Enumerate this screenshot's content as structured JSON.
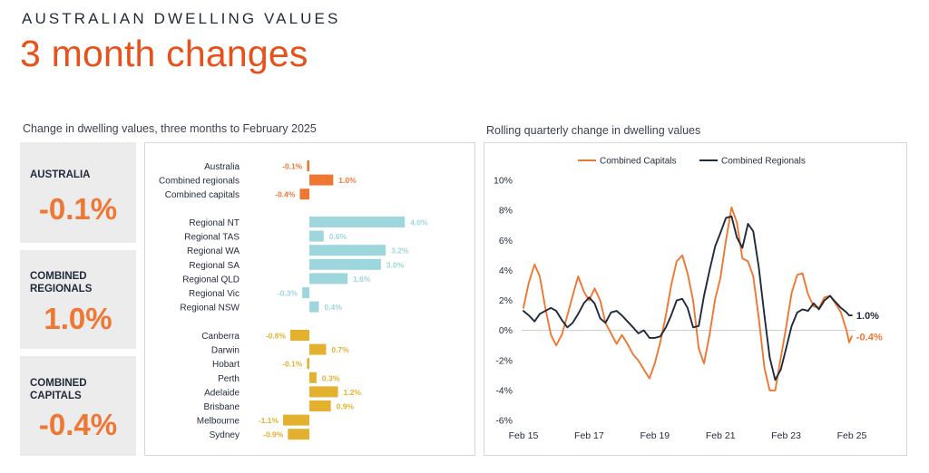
{
  "header": {
    "eyebrow": "AUSTRALIAN DWELLING VALUES",
    "title": "3 month changes"
  },
  "kpis": [
    {
      "label_lines": [
        "AUSTRALIA"
      ],
      "value": "-0.1%"
    },
    {
      "label_lines": [
        "COMBINED",
        "REGIONALS"
      ],
      "value": "1.0%"
    },
    {
      "label_lines": [
        "COMBINED",
        "CAPITALS"
      ],
      "value": "-0.4%"
    }
  ],
  "colors": {
    "orange_accent": "#e8511b",
    "kpi_value": "#ef7734",
    "bar_orange": "#ef7734",
    "bar_teal": "#9ed6dd",
    "bar_gold": "#e3b12e",
    "line_capitals": "#ef7734",
    "line_regionals": "#1f2a3a"
  },
  "chart_data": [
    {
      "type": "bar",
      "orientation": "horizontal",
      "title": "Change in dwelling values, three months to February 2025",
      "unit": "%",
      "groups": [
        {
          "color_key": "bar_orange",
          "categories": [
            "Australia",
            "Combined regionals",
            "Combined capitals"
          ],
          "values": [
            -0.1,
            1.0,
            -0.4
          ],
          "labels": [
            "-0.1%",
            "1.0%",
            "-0.4%"
          ]
        },
        {
          "color_key": "bar_teal",
          "categories": [
            "Regional NT",
            "Regional TAS",
            "Regional WA",
            "Regional SA",
            "Regional QLD",
            "Regional Vic",
            "Regional NSW"
          ],
          "values": [
            4.0,
            0.6,
            3.2,
            3.0,
            1.6,
            -0.3,
            0.4
          ],
          "labels": [
            "4.0%",
            "0.6%",
            "3.2%",
            "3.0%",
            "1.6%",
            "-0.3%",
            "0.4%"
          ]
        },
        {
          "color_key": "bar_gold",
          "categories": [
            "Canberra",
            "Darwin",
            "Hobart",
            "Perth",
            "Adelaide",
            "Brisbane",
            "Melbourne",
            "Sydney"
          ],
          "values": [
            -0.8,
            0.7,
            -0.1,
            0.3,
            1.2,
            0.9,
            -1.1,
            -0.9
          ],
          "labels": [
            "-0.8%",
            "0.7%",
            "-0.1%",
            "0.3%",
            "1.2%",
            "0.9%",
            "-1.1%",
            "-0.9%"
          ]
        }
      ]
    },
    {
      "type": "line",
      "title": "Rolling quarterly change in dwelling values",
      "x_tick_labels": [
        "Feb 15",
        "Feb 17",
        "Feb 19",
        "Feb 21",
        "Feb 23",
        "Feb 25"
      ],
      "x_tick_positions": [
        2015.083,
        2017.083,
        2019.083,
        2021.083,
        2023.083,
        2025.083
      ],
      "xlim": [
        2015.083,
        2025.083
      ],
      "y_tick_labels": [
        "10%",
        "8%",
        "6%",
        "4%",
        "2%",
        "0%",
        "-2%",
        "-4%",
        "-6%"
      ],
      "y_ticks": [
        10,
        8,
        6,
        4,
        2,
        0,
        -2,
        -4,
        -6
      ],
      "ylim": [
        -6,
        10
      ],
      "legend_position": "top-center",
      "series": [
        {
          "name": "Combined Capitals",
          "color_key": "line_capitals",
          "end_label": "-0.4%",
          "points": [
            [
              2015.08,
              1.5
            ],
            [
              2015.25,
              3.2
            ],
            [
              2015.42,
              4.4
            ],
            [
              2015.58,
              3.6
            ],
            [
              2015.75,
              1.5
            ],
            [
              2015.92,
              -0.3
            ],
            [
              2016.08,
              -1.0
            ],
            [
              2016.25,
              -0.3
            ],
            [
              2016.42,
              1.0
            ],
            [
              2016.58,
              2.3
            ],
            [
              2016.75,
              3.6
            ],
            [
              2016.92,
              2.6
            ],
            [
              2017.08,
              2.0
            ],
            [
              2017.25,
              2.8
            ],
            [
              2017.42,
              2.0
            ],
            [
              2017.58,
              0.5
            ],
            [
              2017.75,
              -0.2
            ],
            [
              2017.92,
              -0.9
            ],
            [
              2018.08,
              -0.3
            ],
            [
              2018.25,
              -0.9
            ],
            [
              2018.42,
              -1.6
            ],
            [
              2018.58,
              -2.0
            ],
            [
              2018.75,
              -2.6
            ],
            [
              2018.92,
              -3.2
            ],
            [
              2019.08,
              -2.2
            ],
            [
              2019.25,
              -0.8
            ],
            [
              2019.42,
              1.0
            ],
            [
              2019.58,
              3.0
            ],
            [
              2019.75,
              4.6
            ],
            [
              2019.92,
              5.0
            ],
            [
              2020.08,
              3.8
            ],
            [
              2020.25,
              2.0
            ],
            [
              2020.42,
              -1.2
            ],
            [
              2020.58,
              -2.2
            ],
            [
              2020.75,
              -0.3
            ],
            [
              2020.92,
              2.1
            ],
            [
              2021.08,
              3.5
            ],
            [
              2021.25,
              6.0
            ],
            [
              2021.42,
              8.2
            ],
            [
              2021.58,
              7.2
            ],
            [
              2021.75,
              4.8
            ],
            [
              2021.92,
              4.6
            ],
            [
              2022.08,
              3.6
            ],
            [
              2022.25,
              0.8
            ],
            [
              2022.42,
              -2.5
            ],
            [
              2022.58,
              -4.0
            ],
            [
              2022.75,
              -4.0
            ],
            [
              2022.92,
              -1.8
            ],
            [
              2023.08,
              0.2
            ],
            [
              2023.25,
              2.5
            ],
            [
              2023.42,
              3.7
            ],
            [
              2023.58,
              3.8
            ],
            [
              2023.75,
              2.4
            ],
            [
              2023.92,
              1.6
            ],
            [
              2024.08,
              1.5
            ],
            [
              2024.25,
              2.2
            ],
            [
              2024.42,
              2.3
            ],
            [
              2024.58,
              1.8
            ],
            [
              2024.75,
              1.2
            ],
            [
              2024.92,
              0.0
            ],
            [
              2025.0,
              -0.8
            ],
            [
              2025.08,
              -0.4
            ]
          ]
        },
        {
          "name": "Combined Regionals",
          "color_key": "line_regionals",
          "end_label": "1.0%",
          "points": [
            [
              2015.08,
              1.3
            ],
            [
              2015.25,
              1.0
            ],
            [
              2015.42,
              0.6
            ],
            [
              2015.58,
              1.1
            ],
            [
              2015.75,
              1.3
            ],
            [
              2015.92,
              1.5
            ],
            [
              2016.08,
              1.3
            ],
            [
              2016.25,
              0.7
            ],
            [
              2016.42,
              0.2
            ],
            [
              2016.58,
              0.5
            ],
            [
              2016.75,
              1.1
            ],
            [
              2016.92,
              1.8
            ],
            [
              2017.08,
              2.2
            ],
            [
              2017.25,
              1.8
            ],
            [
              2017.42,
              0.8
            ],
            [
              2017.58,
              0.5
            ],
            [
              2017.75,
              1.2
            ],
            [
              2017.92,
              1.3
            ],
            [
              2018.08,
              1.0
            ],
            [
              2018.25,
              0.6
            ],
            [
              2018.42,
              0.2
            ],
            [
              2018.58,
              -0.2
            ],
            [
              2018.75,
              0.0
            ],
            [
              2018.92,
              -0.5
            ],
            [
              2019.08,
              -0.5
            ],
            [
              2019.25,
              -0.4
            ],
            [
              2019.42,
              0.2
            ],
            [
              2019.58,
              1.0
            ],
            [
              2019.75,
              2.0
            ],
            [
              2019.92,
              2.1
            ],
            [
              2020.08,
              1.5
            ],
            [
              2020.25,
              0.2
            ],
            [
              2020.42,
              0.3
            ],
            [
              2020.58,
              2.3
            ],
            [
              2020.75,
              4.0
            ],
            [
              2020.92,
              5.6
            ],
            [
              2021.08,
              6.5
            ],
            [
              2021.25,
              7.5
            ],
            [
              2021.42,
              7.6
            ],
            [
              2021.58,
              6.2
            ],
            [
              2021.75,
              5.5
            ],
            [
              2021.92,
              7.1
            ],
            [
              2022.08,
              6.6
            ],
            [
              2022.25,
              4.2
            ],
            [
              2022.42,
              1.0
            ],
            [
              2022.58,
              -1.8
            ],
            [
              2022.75,
              -3.3
            ],
            [
              2022.92,
              -2.6
            ],
            [
              2023.08,
              -1.2
            ],
            [
              2023.25,
              0.3
            ],
            [
              2023.42,
              1.2
            ],
            [
              2023.58,
              1.4
            ],
            [
              2023.75,
              1.3
            ],
            [
              2023.92,
              1.8
            ],
            [
              2024.08,
              1.4
            ],
            [
              2024.25,
              2.0
            ],
            [
              2024.42,
              2.3
            ],
            [
              2024.58,
              1.9
            ],
            [
              2024.75,
              1.5
            ],
            [
              2024.92,
              1.2
            ],
            [
              2025.0,
              1.0
            ],
            [
              2025.08,
              1.0
            ]
          ]
        }
      ]
    }
  ]
}
